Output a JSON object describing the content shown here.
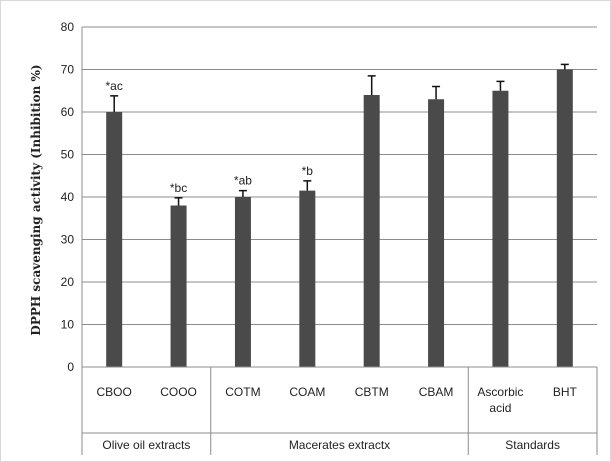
{
  "chart_data": {
    "type": "bar",
    "title": "",
    "xlabel": "",
    "ylabel": "DPPH scavenging activity (Inhibition %)",
    "ylim": [
      0,
      80
    ],
    "yticks": [
      0,
      10,
      20,
      30,
      40,
      50,
      60,
      70,
      80
    ],
    "grid": true,
    "legend": "none",
    "bar_color": "#4a4a4a",
    "categories": [
      "CBOO",
      "COOO",
      "COTM",
      "COAM",
      "CBTM",
      "CBAM",
      "Ascorbic acid",
      "BHT"
    ],
    "category_lines": [
      [
        "CBOO"
      ],
      [
        "COOO"
      ],
      [
        "COTM"
      ],
      [
        "COAM"
      ],
      [
        "CBTM"
      ],
      [
        "CBAM"
      ],
      [
        "Ascorbic",
        "acid"
      ],
      [
        "BHT"
      ]
    ],
    "values": [
      60,
      38,
      40,
      41.5,
      64,
      63,
      65,
      70
    ],
    "errors": [
      3.8,
      1.8,
      1.5,
      2.3,
      4.5,
      3.0,
      2.2,
      1.2
    ],
    "annotations": [
      "*ac",
      "*bc",
      "*ab",
      "*b",
      "",
      "",
      "",
      ""
    ],
    "groups": [
      {
        "label": "Olive oil extracts",
        "start": 0,
        "end": 2
      },
      {
        "label": "Macerates extractx",
        "start": 2,
        "end": 6
      },
      {
        "label": "Standards",
        "start": 6,
        "end": 8
      }
    ]
  }
}
